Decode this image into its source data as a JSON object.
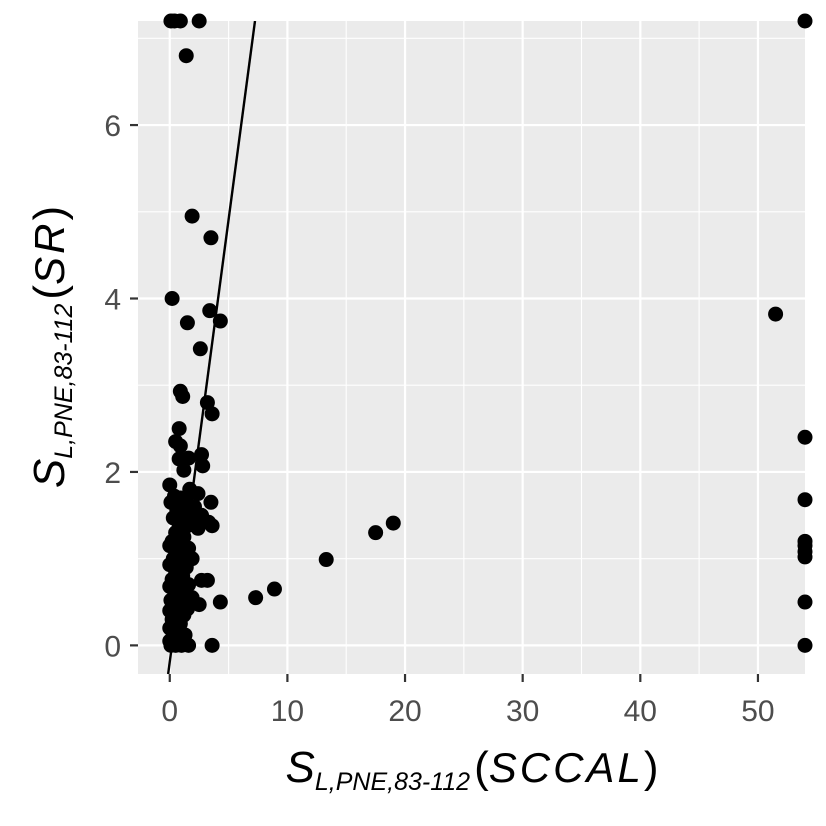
{
  "chart_data": {
    "type": "scatter",
    "title": "",
    "xlabel": {
      "main": "S",
      "subscript": "L,PNE,83-112",
      "paren_open": "(",
      "method": "SCCAL",
      "paren_close": ")"
    },
    "ylabel": {
      "main": "S",
      "subscript": "L,PNE,83-112",
      "paren_open": "(",
      "method": "SR",
      "paren_close": ")"
    },
    "xlim": [
      -2.7,
      54
    ],
    "ylim": [
      -0.33,
      7.2
    ],
    "x_ticks": [
      0,
      10,
      20,
      30,
      40,
      50
    ],
    "y_ticks": [
      0,
      2,
      4,
      6
    ],
    "x_tick_labels": [
      "0",
      "10",
      "20",
      "30",
      "40",
      "50"
    ],
    "y_tick_labels": [
      "0",
      "2",
      "4",
      "6"
    ],
    "grid": true,
    "background": "#ebebeb",
    "point_color": "#000000",
    "fit_line": {
      "slope": 1.02,
      "intercept": -0.19
    },
    "points": [
      {
        "x": 0.1,
        "y": 7.2
      },
      {
        "x": 0.4,
        "y": 7.2
      },
      {
        "x": 0.9,
        "y": 7.2
      },
      {
        "x": 2.5,
        "y": 7.2
      },
      {
        "x": 1.4,
        "y": 6.8
      },
      {
        "x": 1.9,
        "y": 4.95
      },
      {
        "x": 3.5,
        "y": 4.7
      },
      {
        "x": 0.2,
        "y": 4.0
      },
      {
        "x": 3.4,
        "y": 3.86
      },
      {
        "x": 4.3,
        "y": 3.74
      },
      {
        "x": 1.5,
        "y": 3.72
      },
      {
        "x": 2.6,
        "y": 3.42
      },
      {
        "x": 0.9,
        "y": 2.93
      },
      {
        "x": 1.1,
        "y": 2.87
      },
      {
        "x": 3.2,
        "y": 2.8
      },
      {
        "x": 3.6,
        "y": 2.67
      },
      {
        "x": 0.8,
        "y": 2.5
      },
      {
        "x": 0.5,
        "y": 2.35
      },
      {
        "x": 0.9,
        "y": 2.3
      },
      {
        "x": 2.7,
        "y": 2.2
      },
      {
        "x": 1.6,
        "y": 2.16
      },
      {
        "x": 0.8,
        "y": 2.15
      },
      {
        "x": 2.8,
        "y": 2.07
      },
      {
        "x": 1.2,
        "y": 2.02
      },
      {
        "x": 0.0,
        "y": 1.85
      },
      {
        "x": 1.7,
        "y": 1.8
      },
      {
        "x": 2.4,
        "y": 1.75
      },
      {
        "x": 0.4,
        "y": 1.72
      },
      {
        "x": 0.9,
        "y": 1.7
      },
      {
        "x": 1.4,
        "y": 1.66
      },
      {
        "x": 3.5,
        "y": 1.65
      },
      {
        "x": 0.1,
        "y": 1.65
      },
      {
        "x": 2.1,
        "y": 1.6
      },
      {
        "x": 0.6,
        "y": 1.56
      },
      {
        "x": 1.1,
        "y": 1.52
      },
      {
        "x": 2.7,
        "y": 1.5
      },
      {
        "x": 0.3,
        "y": 1.47
      },
      {
        "x": 1.8,
        "y": 1.45
      },
      {
        "x": 3.3,
        "y": 1.42
      },
      {
        "x": 0.8,
        "y": 1.4
      },
      {
        "x": 1.5,
        "y": 1.38
      },
      {
        "x": 3.6,
        "y": 1.38
      },
      {
        "x": 2.4,
        "y": 1.35
      },
      {
        "x": 0.5,
        "y": 1.3
      },
      {
        "x": 1.2,
        "y": 1.25
      },
      {
        "x": 0.2,
        "y": 1.2
      },
      {
        "x": 0.9,
        "y": 1.18
      },
      {
        "x": 0.0,
        "y": 1.15
      },
      {
        "x": 1.6,
        "y": 1.12
      },
      {
        "x": 0.6,
        "y": 1.1
      },
      {
        "x": 1.3,
        "y": 1.05
      },
      {
        "x": 0.3,
        "y": 1.0
      },
      {
        "x": 1.9,
        "y": 1.0
      },
      {
        "x": 0.8,
        "y": 0.95
      },
      {
        "x": 0.0,
        "y": 0.93
      },
      {
        "x": 1.4,
        "y": 0.9
      },
      {
        "x": 0.5,
        "y": 0.85
      },
      {
        "x": 1.1,
        "y": 0.8
      },
      {
        "x": 0.2,
        "y": 0.76
      },
      {
        "x": 2.7,
        "y": 0.75
      },
      {
        "x": 3.2,
        "y": 0.75
      },
      {
        "x": 0.8,
        "y": 0.72
      },
      {
        "x": 1.6,
        "y": 0.7
      },
      {
        "x": 0.0,
        "y": 0.68
      },
      {
        "x": 0.4,
        "y": 0.65
      },
      {
        "x": 1.2,
        "y": 0.62
      },
      {
        "x": 8.9,
        "y": 0.65
      },
      {
        "x": 0.7,
        "y": 0.58
      },
      {
        "x": 7.3,
        "y": 0.55
      },
      {
        "x": 1.9,
        "y": 0.55
      },
      {
        "x": 0.1,
        "y": 0.52
      },
      {
        "x": 4.3,
        "y": 0.5
      },
      {
        "x": 0.9,
        "y": 0.5
      },
      {
        "x": 2.5,
        "y": 0.47
      },
      {
        "x": 0.4,
        "y": 0.45
      },
      {
        "x": 1.5,
        "y": 0.42
      },
      {
        "x": 0.0,
        "y": 0.4
      },
      {
        "x": 0.7,
        "y": 0.38
      },
      {
        "x": 1.2,
        "y": 0.35
      },
      {
        "x": 0.2,
        "y": 0.3
      },
      {
        "x": 0.9,
        "y": 0.25
      },
      {
        "x": 0.0,
        "y": 0.2
      },
      {
        "x": 0.5,
        "y": 0.15
      },
      {
        "x": 1.3,
        "y": 0.12
      },
      {
        "x": 0.3,
        "y": 0.1
      },
      {
        "x": 0.0,
        "y": 0.05
      },
      {
        "x": 0.1,
        "y": 0.0
      },
      {
        "x": 0.5,
        "y": 0.0
      },
      {
        "x": 1.0,
        "y": 0.0
      },
      {
        "x": 1.6,
        "y": 0.0
      },
      {
        "x": 3.6,
        "y": 0.0
      },
      {
        "x": 13.3,
        "y": 0.99
      },
      {
        "x": 17.5,
        "y": 1.3
      },
      {
        "x": 19.0,
        "y": 1.41
      },
      {
        "x": 51.5,
        "y": 3.82
      },
      {
        "x": 54.0,
        "y": 7.2
      },
      {
        "x": 54.0,
        "y": 2.4
      },
      {
        "x": 54.0,
        "y": 1.68
      },
      {
        "x": 54.0,
        "y": 1.2
      },
      {
        "x": 54.0,
        "y": 1.15
      },
      {
        "x": 54.0,
        "y": 1.08
      },
      {
        "x": 54.0,
        "y": 1.02
      },
      {
        "x": 54.0,
        "y": 0.5
      },
      {
        "x": 54.0,
        "y": 0.0
      }
    ]
  }
}
